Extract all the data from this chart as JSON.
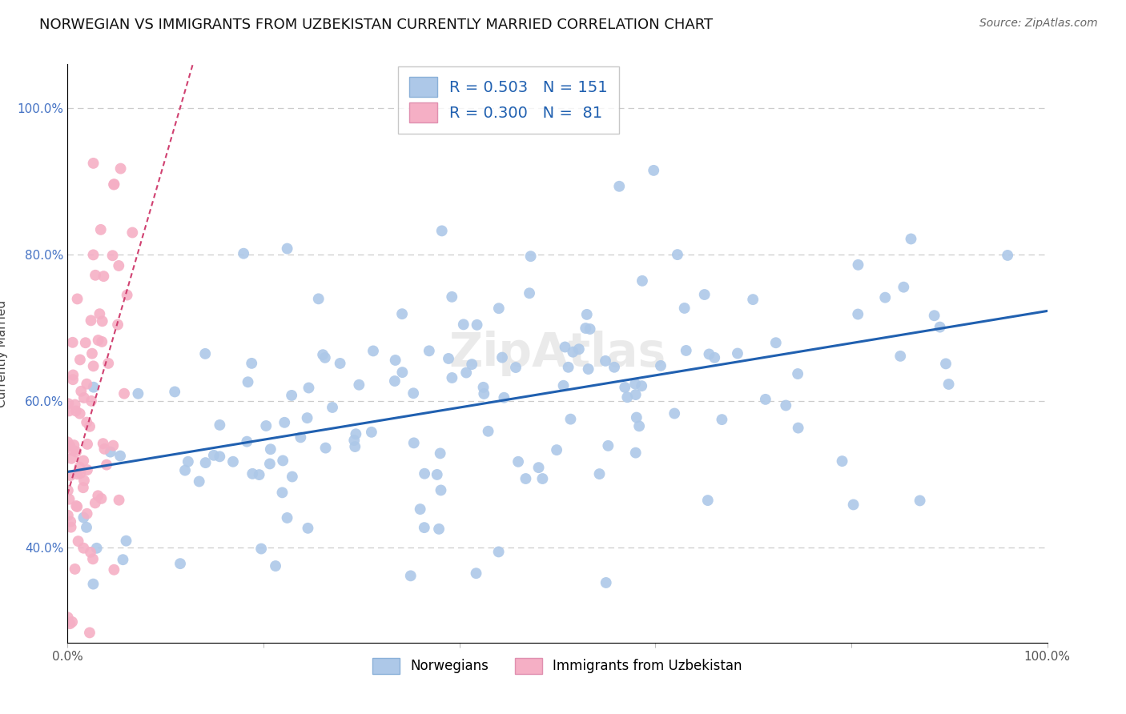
{
  "title": "NORWEGIAN VS IMMIGRANTS FROM UZBEKISTAN CURRENTLY MARRIED CORRELATION CHART",
  "source": "Source: ZipAtlas.com",
  "ylabel": "Currently Married",
  "legend_bottom": [
    "Norwegians",
    "Immigrants from Uzbekistan"
  ],
  "blue_R": 0.503,
  "blue_N": 151,
  "pink_R": 0.3,
  "pink_N": 81,
  "blue_color": "#adc8e8",
  "blue_edge": "#adc8e8",
  "pink_color": "#f5afc5",
  "pink_edge": "#f5afc5",
  "trend_blue": "#2060b0",
  "trend_pink": "#d04070",
  "background": "#ffffff",
  "grid_color": "#cccccc",
  "yticks": [
    0.4,
    0.6,
    0.8,
    1.0
  ],
  "ytick_labels": [
    "40.0%",
    "60.0%",
    "80.0%",
    "100.0%"
  ],
  "xtick_labels_show": [
    "0.0%",
    "100.0%"
  ],
  "title_fontsize": 13,
  "source_fontsize": 10,
  "marker_size": 100,
  "blue_seed": 42,
  "pink_seed": 7
}
